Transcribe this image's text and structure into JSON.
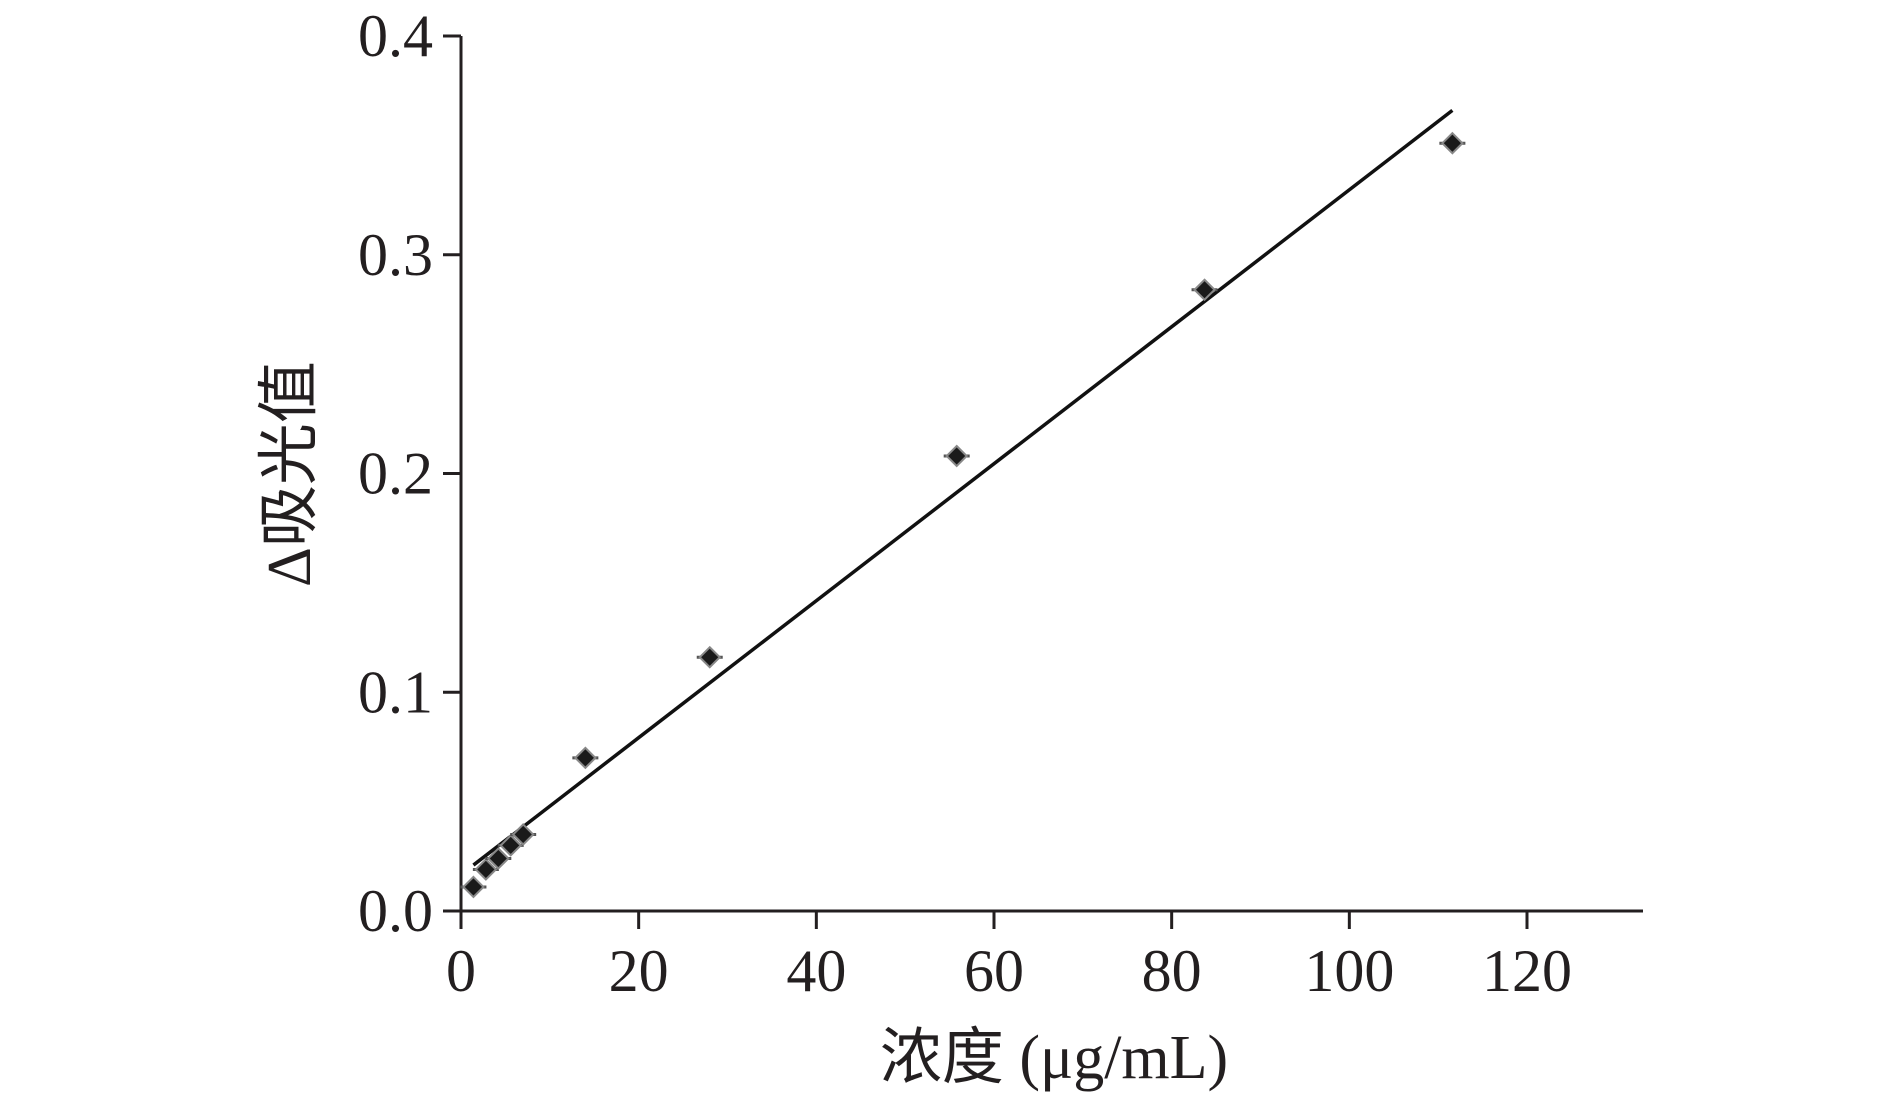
{
  "chart_data": {
    "type": "scatter",
    "title": "",
    "xlabel": "浓度 (μg/mL)",
    "ylabel": "Δ吸光值",
    "xlim": [
      0,
      133
    ],
    "ylim": [
      0,
      0.4
    ],
    "x_ticks": [
      "0",
      "20",
      "40",
      "60",
      "80",
      "100",
      "120"
    ],
    "y_ticks": [
      "0.0",
      "0.1",
      "0.2",
      "0.3",
      "0.4"
    ],
    "grid": false,
    "legend": "none",
    "series": [
      {
        "marker": "diamond",
        "x": [
          1.4,
          2.8,
          4.2,
          5.6,
          7.0,
          14.0,
          28.0,
          55.8,
          83.7,
          111.6
        ],
        "y": [
          0.011,
          0.019,
          0.024,
          0.03,
          0.035,
          0.07,
          0.116,
          0.208,
          0.284,
          0.351
        ]
      }
    ],
    "fit_line": {
      "x": [
        1.4,
        111.6
      ],
      "y": [
        0.021,
        0.366
      ]
    },
    "colors": {
      "ink": "#231f20",
      "marker": "#1a1a1a"
    }
  }
}
